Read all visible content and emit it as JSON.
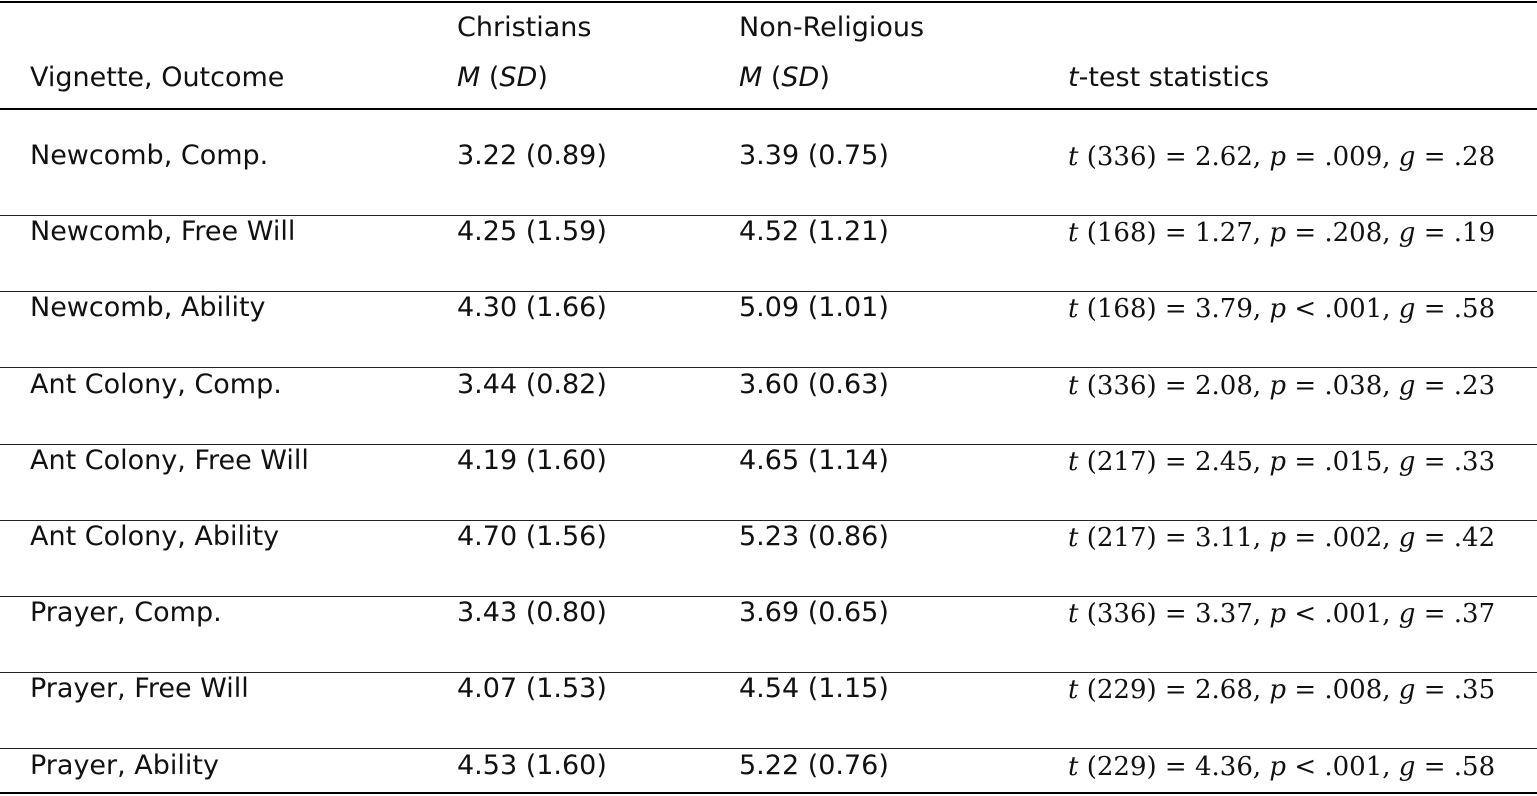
{
  "header": {
    "col1": "Vignette, Outcome",
    "col2_group": "Christians",
    "col3_group": "Non-Religious",
    "m_label": "M",
    "sd_label": "SD",
    "col4_t": "t",
    "col4_rest": "-test statistics"
  },
  "rows": [
    {
      "label": "Newcomb, Comp.",
      "christians": "3.22 (0.89)",
      "nonreligious": "3.39 (0.75)",
      "df": "(336)",
      "t": "2.62",
      "p_op": "=",
      "p": ".009",
      "g": ".28"
    },
    {
      "label": "Newcomb, Free Will",
      "christians": "4.25 (1.59)",
      "nonreligious": "4.52 (1.21)",
      "df": "(168)",
      "t": "1.27",
      "p_op": "=",
      "p": ".208",
      "g": ".19"
    },
    {
      "label": "Newcomb, Ability",
      "christians": "4.30 (1.66)",
      "nonreligious": "5.09 (1.01)",
      "df": "(168)",
      "t": "3.79",
      "p_op": "<",
      "p": ".001",
      "g": ".58"
    },
    {
      "label": "Ant Colony, Comp.",
      "christians": "3.44 (0.82)",
      "nonreligious": "3.60 (0.63)",
      "df": "(336)",
      "t": "2.08",
      "p_op": "=",
      "p": ".038",
      "g": ".23"
    },
    {
      "label": "Ant Colony, Free Will",
      "christians": "4.19 (1.60)",
      "nonreligious": "4.65 (1.14)",
      "df": "(217)",
      "t": "2.45",
      "p_op": "=",
      "p": ".015",
      "g": ".33"
    },
    {
      "label": "Ant Colony, Ability",
      "christians": "4.70 (1.56)",
      "nonreligious": "5.23 (0.86)",
      "df": "(217)",
      "t": "3.11",
      "p_op": "=",
      "p": ".002",
      "g": ".42"
    },
    {
      "label": "Prayer, Comp.",
      "christians": "3.43 (0.80)",
      "nonreligious": "3.69 (0.65)",
      "df": "(336)",
      "t": "3.37",
      "p_op": "<",
      "p": ".001",
      "g": ".37"
    },
    {
      "label": "Prayer, Free Will",
      "christians": "4.07 (1.53)",
      "nonreligious": "4.54 (1.15)",
      "df": "(229)",
      "t": "2.68",
      "p_op": "=",
      "p": ".008",
      "g": ".35"
    },
    {
      "label": "Prayer, Ability",
      "christians": "4.53 (1.60)",
      "nonreligious": "5.22 (0.76)",
      "df": "(229)",
      "t": "4.36",
      "p_op": "<",
      "p": ".001",
      "g": ".58"
    }
  ]
}
